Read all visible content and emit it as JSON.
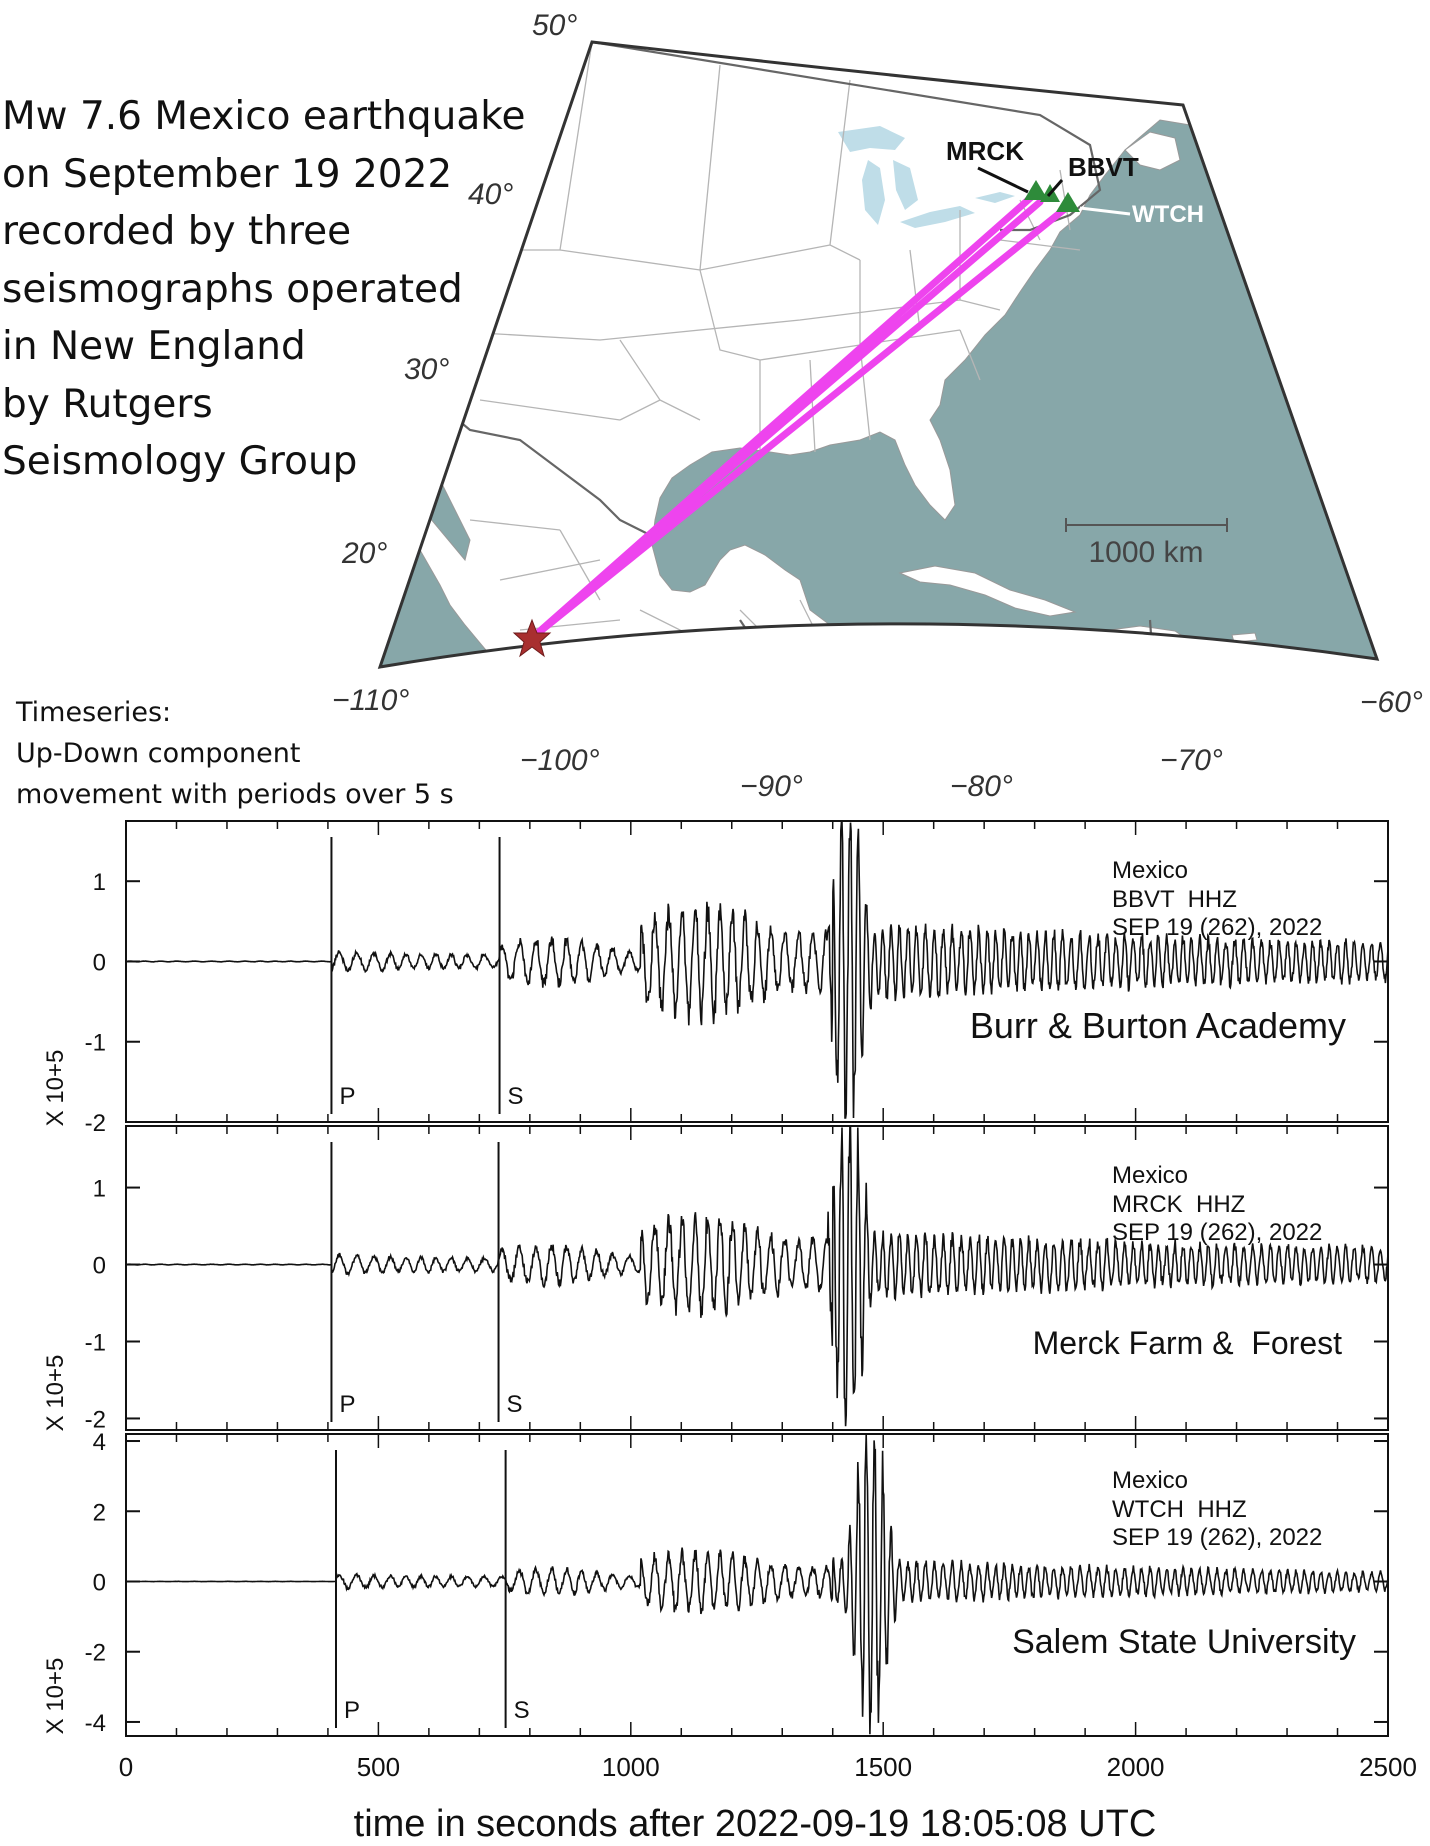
{
  "title_lines": [
    "Mw 7.6 Mexico earthquake",
    "on September 19 2022",
    "recorded by three",
    "seismographs operated",
    "in New England",
    "by Rutgers",
    "Seismology Group"
  ],
  "timeseries_note": [
    "Timeseries:",
    "Up-Down component",
    "movement with periods over 5 s"
  ],
  "map": {
    "lat_labels": [
      "50°",
      "40°",
      "30°",
      "20°"
    ],
    "lon_labels": [
      "−110°",
      "−100°",
      "−90°",
      "−80°",
      "−70°",
      "−60°"
    ],
    "scale_bar_label": "1000 km",
    "stations": [
      {
        "code": "MRCK",
        "lat": 43.9,
        "lon": -73.2
      },
      {
        "code": "BBVT",
        "lat": 43.2,
        "lon": -73.1
      },
      {
        "code": "WTCH",
        "lat": 42.5,
        "lon": -70.9
      }
    ],
    "epicenter": {
      "lat": 18.4,
      "lon": -103.2
    },
    "colors": {
      "ocean": "#87a7a9",
      "land": "#ffffff",
      "lakes": "#bfdde8",
      "ray_path": "#ee44ee",
      "station": "#2e8b3a",
      "epicenter": "#a82f2f"
    }
  },
  "chart_data": [
    {
      "type": "line",
      "station": "BBVT",
      "event": "Mexico",
      "channel_line": "BBVT  HHZ",
      "date_line": "SEP 19 (262), 2022",
      "site": "Burr & Burton Academy",
      "ylabel": "X 10+5",
      "yticks": [
        "1",
        "0",
        "-1",
        "-2"
      ],
      "ylim": [
        -2.0,
        1.75
      ],
      "xlim": [
        0,
        2500
      ],
      "p_arrival": 407,
      "s_arrival": 740,
      "amplitudes": {
        "P": 0.12,
        "S": 0.28,
        "surface_early": 0.65,
        "peak_pos": 1.7,
        "peak_neg": -1.95,
        "coda": 0.35
      }
    },
    {
      "type": "line",
      "station": "MRCK",
      "event": "Mexico",
      "channel_line": "MRCK  HHZ",
      "date_line": "SEP 19 (262), 2022",
      "site": "Merck Farm &  Forest",
      "ylabel": "X 10+5",
      "yticks": [
        "1",
        "0",
        "-1",
        "-2"
      ],
      "ylim": [
        -2.15,
        1.8
      ],
      "xlim": [
        0,
        2500
      ],
      "p_arrival": 407,
      "s_arrival": 738,
      "amplitudes": {
        "P": 0.12,
        "S": 0.25,
        "surface_early": 0.6,
        "peak_pos": 1.8,
        "peak_neg": -2.1,
        "coda": 0.3
      }
    },
    {
      "type": "line",
      "station": "WTCH",
      "event": "Mexico",
      "channel_line": "WTCH  HHZ",
      "date_line": "SEP 19 (262), 2022",
      "site": "Salem State University",
      "ylabel": "X 10+5",
      "yticks": [
        "4",
        "2",
        "0",
        "-2",
        "-4"
      ],
      "ylim": [
        -4.4,
        4.2
      ],
      "xlim": [
        0,
        2500
      ],
      "p_arrival": 416,
      "s_arrival": 752,
      "amplitudes": {
        "P": 0.2,
        "S": 0.35,
        "surface_early": 0.8,
        "peak_pos": 4.0,
        "peak_neg": -4.3,
        "coda": 0.5
      }
    }
  ],
  "xaxis": {
    "ticks": [
      0,
      500,
      1000,
      1500,
      2000,
      2500
    ],
    "label": "time in seconds after 2022-09-19 18:05:08 UTC"
  }
}
